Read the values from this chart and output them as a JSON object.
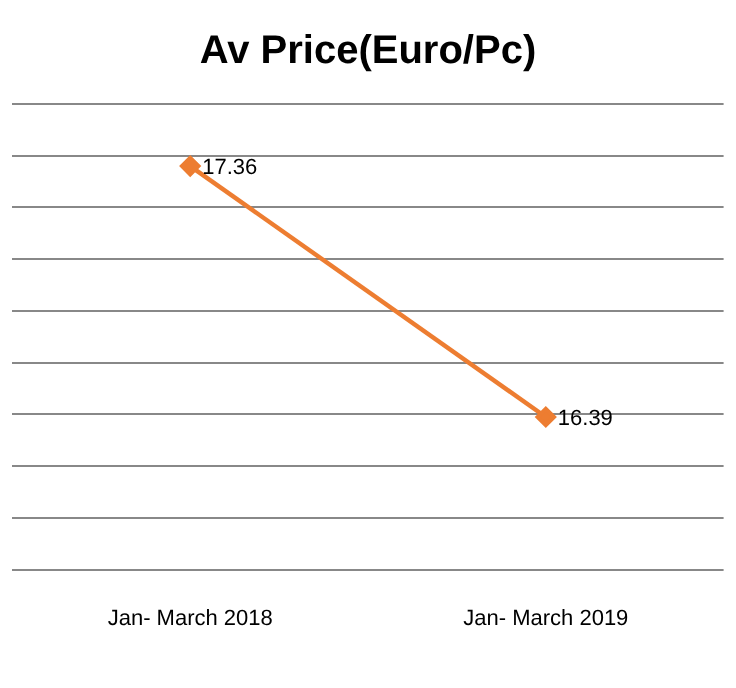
{
  "chart_data": {
    "type": "line",
    "title": "Av Price(Euro/Pc)",
    "categories": [
      "Jan- March 2018",
      "Jan- March 2019"
    ],
    "series": [
      {
        "color": "#ed7d31",
        "values": [
          17.36,
          16.39
        ]
      }
    ],
    "ylim": [
      15.8,
      17.6
    ],
    "yticks": [
      {
        "value": 15.8,
        "label": null
      },
      {
        "value": 16.0,
        "label": null
      },
      {
        "value": 16.2,
        "label": null
      },
      {
        "value": 16.4,
        "label": null
      },
      {
        "value": 16.6,
        "label": null
      },
      {
        "value": 16.8,
        "label": null
      },
      {
        "value": 17.0,
        "label": null
      },
      {
        "value": 17.2,
        "label": null
      },
      {
        "value": 17.4,
        "label": null
      },
      {
        "value": 17.6,
        "label": null
      }
    ],
    "tick_labels": "x",
    "grid": "y",
    "data_labels": true,
    "marker": "diamond",
    "line_style": "solid",
    "legend": false
  }
}
